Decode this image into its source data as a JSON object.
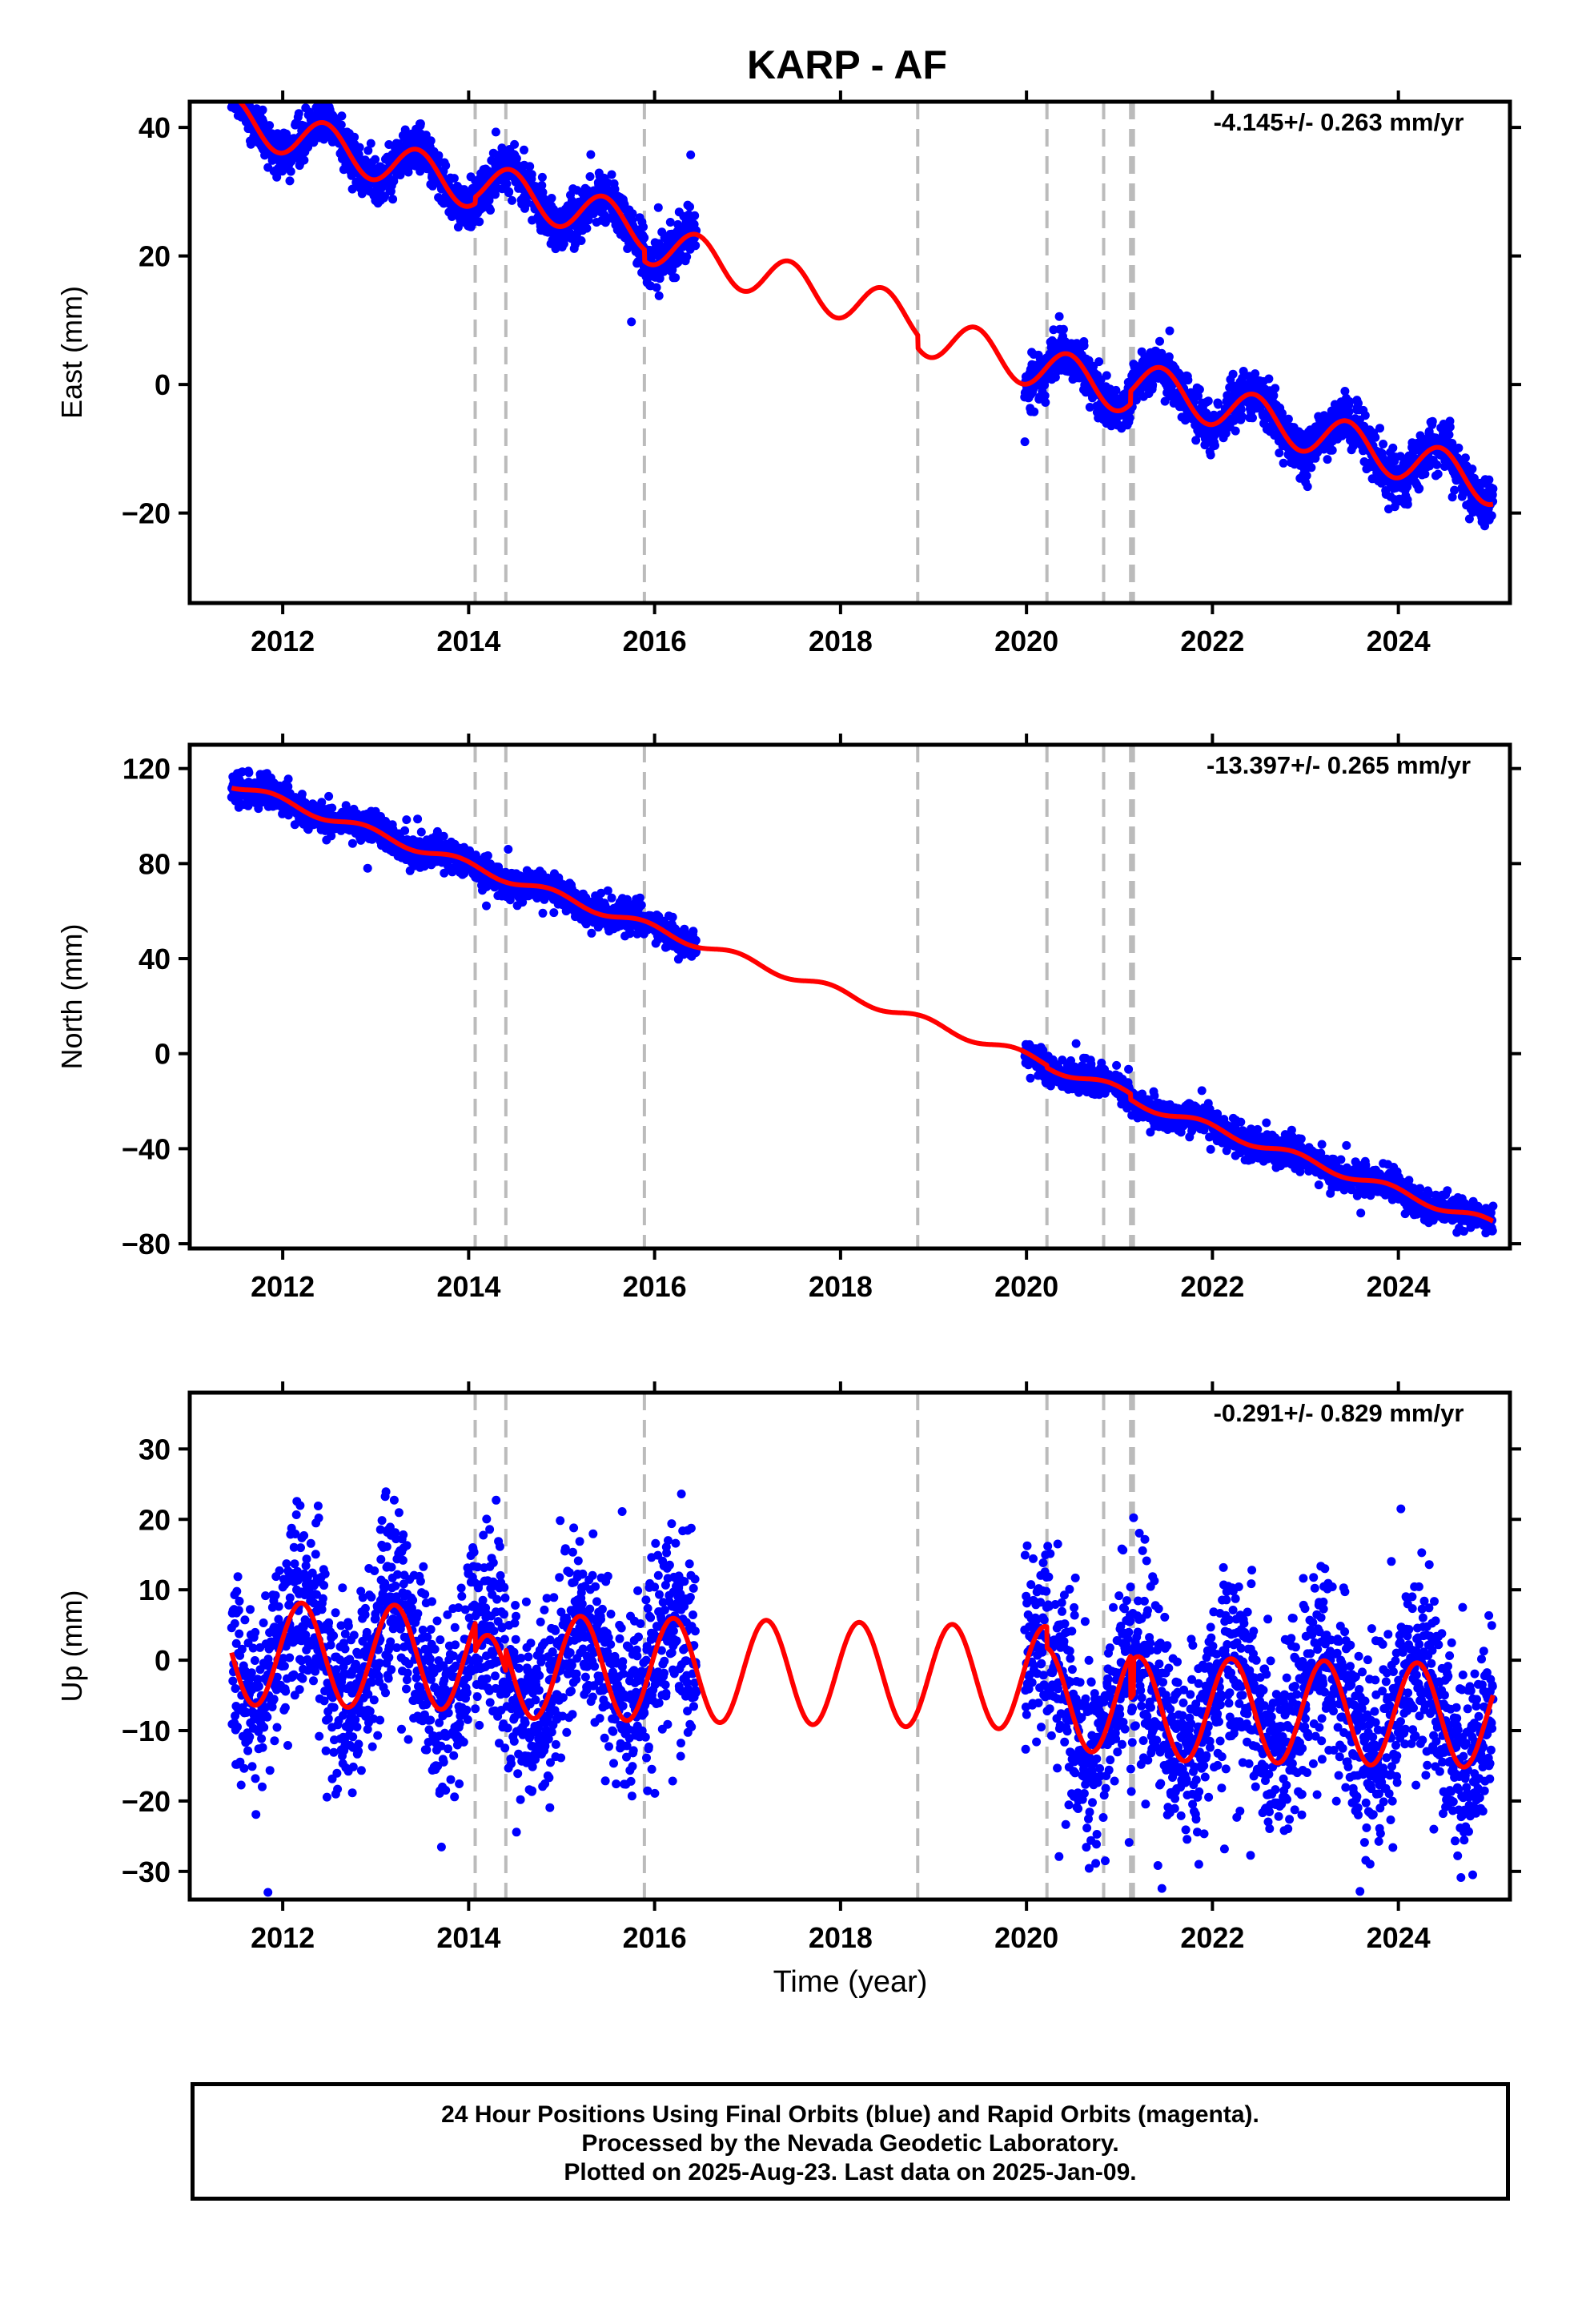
{
  "chart_data": [
    {
      "type": "scatter",
      "panel": "east",
      "title": "KARP - AF",
      "xlabel": "",
      "ylabel": "East (mm)",
      "annotation": "-4.145+/- 0.263 mm/yr",
      "xlim": [
        2011.0,
        2025.2
      ],
      "ylim": [
        -34,
        44
      ],
      "yticks": [
        -20,
        0,
        20,
        40
      ],
      "xticks": [
        2012,
        2014,
        2016,
        2018,
        2020,
        2022,
        2024
      ],
      "grid": false,
      "colors": {
        "observations": "#0000ff",
        "model": "#ff0000",
        "steps": "#bbbbbb"
      },
      "steps": [
        2014.07,
        2014.4,
        2015.89,
        2018.83,
        2020.22,
        2020.83,
        2021.12,
        2021.15
      ],
      "model": {
        "t0": 2011.45,
        "intercept": 41.5,
        "rate": -4.145,
        "annual_sin": 1.0,
        "annual_cos": -3.2,
        "offsets": [
          [
            2014.07,
            1.0
          ],
          [
            2015.89,
            -1.8
          ],
          [
            2018.83,
            -2.0
          ],
          [
            2021.12,
            2.0
          ]
        ],
        "start": 2011.45,
        "end": 2025.02
      },
      "observations": {
        "segments": [
          [
            2011.45,
            2016.45
          ],
          [
            2019.98,
            2025.02
          ]
        ],
        "noise_sd": 1.8,
        "seed": 11,
        "step": 0.0027
      }
    },
    {
      "type": "scatter",
      "panel": "north",
      "title": "",
      "xlabel": "",
      "ylabel": "North (mm)",
      "annotation": "-13.397+/- 0.265 mm/yr",
      "xlim": [
        2011.0,
        2025.2
      ],
      "ylim": [
        -82,
        130
      ],
      "yticks": [
        -80,
        -40,
        0,
        40,
        80,
        120
      ],
      "xticks": [
        2012,
        2014,
        2016,
        2018,
        2020,
        2022,
        2024
      ],
      "grid": false,
      "colors": {
        "observations": "#0000ff",
        "model": "#ff0000",
        "steps": "#bbbbbb"
      },
      "steps": [
        2014.07,
        2014.4,
        2015.89,
        2018.83,
        2020.22,
        2020.83,
        2021.12,
        2021.15
      ],
      "model": {
        "t0": 2011.45,
        "intercept": 113.5,
        "rate": -13.397,
        "annual_sin": -1.2,
        "annual_cos": 1.4,
        "offsets": [
          [
            2020.22,
            -1.0
          ],
          [
            2021.12,
            -2.5
          ]
        ],
        "start": 2011.45,
        "end": 2025.02
      },
      "observations": {
        "segments": [
          [
            2011.45,
            2016.45
          ],
          [
            2019.98,
            2025.02
          ]
        ],
        "noise_sd": 3.0,
        "seed": 23,
        "step": 0.0027
      }
    },
    {
      "type": "scatter",
      "panel": "up",
      "title": "",
      "xlabel": "Time (year)",
      "ylabel": "Up (mm)",
      "annotation": "-0.291+/- 0.829 mm/yr",
      "xlim": [
        2011.0,
        2025.2
      ],
      "ylim": [
        -34,
        38
      ],
      "yticks": [
        -30,
        -20,
        -10,
        0,
        10,
        20,
        30
      ],
      "xticks": [
        2012,
        2014,
        2016,
        2018,
        2020,
        2022,
        2024
      ],
      "grid": false,
      "colors": {
        "observations": "#0000ff",
        "model": "#ff0000",
        "steps": "#bbbbbb"
      },
      "steps": [
        2014.07,
        2014.4,
        2015.89,
        2018.83,
        2020.22,
        2020.83,
        2021.12,
        2021.15
      ],
      "model": {
        "t0": 2011.45,
        "intercept": 1.0,
        "rate": -0.291,
        "annual_sin": 7.0,
        "annual_cos": 2.2,
        "offsets": [
          [
            2014.07,
            -4.0
          ],
          [
            2014.4,
            3.0
          ],
          [
            2020.22,
            -3.0
          ],
          [
            2021.12,
            -6.0
          ],
          [
            2021.15,
            5.0
          ]
        ],
        "start": 2011.45,
        "end": 2025.02
      },
      "observations": {
        "segments": [
          [
            2011.45,
            2016.45
          ],
          [
            2019.98,
            2025.02
          ]
        ],
        "noise_sd": 6.5,
        "seed": 37,
        "step": 0.0027
      }
    }
  ],
  "footer": {
    "line1": "24 Hour Positions Using Final Orbits (blue) and Rapid Orbits (magenta).",
    "line2": "Processed by the Nevada Geodetic Laboratory.",
    "line3": "Plotted on 2025-Aug-23. Last data on 2025-Jan-09."
  }
}
